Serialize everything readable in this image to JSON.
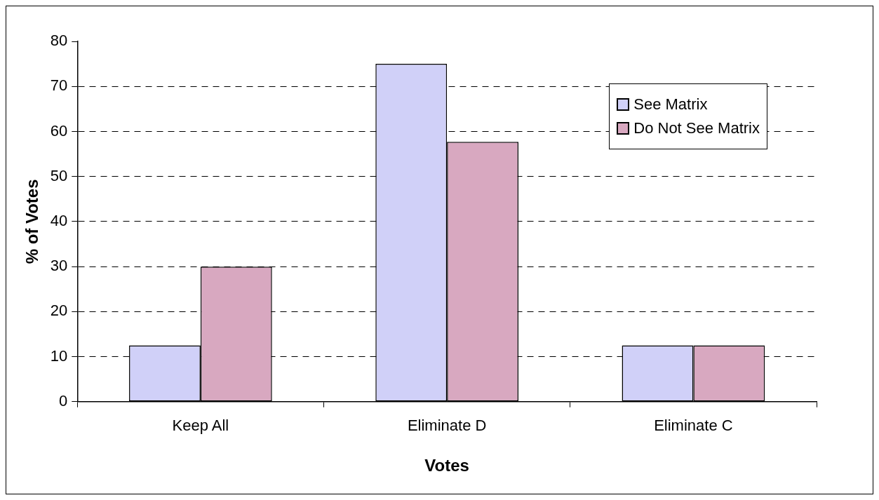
{
  "chart_data": {
    "type": "bar",
    "xlabel": "Votes",
    "ylabel": "% of Votes",
    "categories": [
      "Keep All",
      "Eliminate D",
      "Eliminate C"
    ],
    "series": [
      {
        "name": "See Matrix",
        "color": "#d0d0f8",
        "values": [
          12.5,
          75,
          12.5
        ]
      },
      {
        "name": "Do Not See Matrix",
        "color": "#d8a8c0",
        "values": [
          30,
          57.7,
          12.5
        ]
      }
    ],
    "ylim": [
      0,
      80
    ],
    "yticks": [
      0,
      10,
      20,
      30,
      40,
      50,
      60,
      70,
      80
    ],
    "grid": "y",
    "legend": "top right"
  }
}
